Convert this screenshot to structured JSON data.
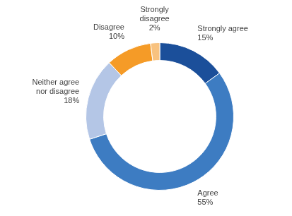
{
  "chart_data": {
    "type": "doughnut",
    "categories": [
      "Strongly agree",
      "Agree",
      "Neither agree nor disagree",
      "Disagree",
      "Strongly disagree"
    ],
    "values": [
      15,
      55,
      18,
      10,
      2
    ],
    "value_labels": [
      "15%",
      "55%",
      "18%",
      "10%",
      "2%"
    ],
    "colors": [
      "#1b4f9a",
      "#3d7cc2",
      "#b4c6e6",
      "#f59b27",
      "#f8c27f"
    ],
    "data_labels": true
  }
}
